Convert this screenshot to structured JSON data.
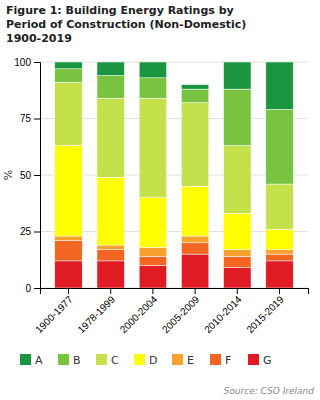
{
  "chart_data": {
    "type": "bar",
    "stacked": true,
    "title": "Figure 1: Building Energy Ratings by\nPeriod of Construction (Non-Domestic)\n1900-2019",
    "categories": [
      "1900-1977",
      "1978-1999",
      "2000-2004",
      "2005-2009",
      "2010-2014",
      "2015-2019"
    ],
    "y_label": "%",
    "ylim": [
      0,
      100
    ],
    "yticks": [
      0,
      25,
      50,
      75,
      100
    ],
    "grid": true,
    "legend": "bottom",
    "annotations": [
      "Source: CSO Ireland"
    ],
    "series": [
      {
        "name": "G",
        "color": "#e01b24",
        "values": [
          12,
          12,
          10,
          15,
          9,
          12
        ]
      },
      {
        "name": "F",
        "color": "#f26522",
        "values": [
          9,
          5,
          4,
          5,
          5,
          3
        ]
      },
      {
        "name": "E",
        "color": "#f9a12e",
        "values": [
          2,
          2,
          4,
          3,
          3,
          2
        ]
      },
      {
        "name": "D",
        "color": "#ffff00",
        "values": [
          40,
          30,
          22,
          22,
          16,
          9
        ]
      },
      {
        "name": "C",
        "color": "#c4e04a",
        "values": [
          28,
          35,
          44,
          37,
          30,
          20
        ]
      },
      {
        "name": "B",
        "color": "#78c440",
        "values": [
          6,
          10,
          9,
          6,
          25,
          33
        ]
      },
      {
        "name": "A",
        "color": "#1a9641",
        "values": [
          3,
          6,
          7,
          2,
          12,
          21
        ]
      }
    ]
  }
}
